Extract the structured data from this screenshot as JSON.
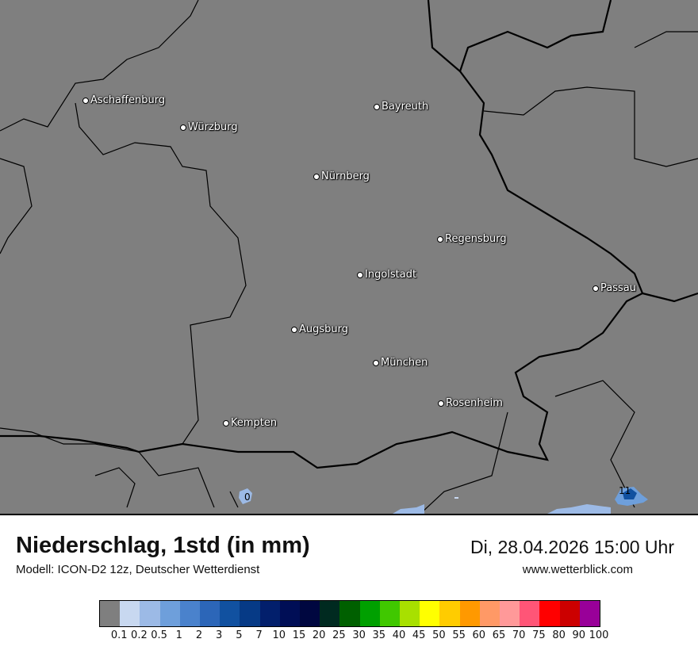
{
  "map": {
    "cities": [
      {
        "name": "Aschaffenburg"
      },
      {
        "name": "Würzburg"
      },
      {
        "name": "Bayreuth"
      },
      {
        "name": "Nürnberg"
      },
      {
        "name": "Regensburg"
      },
      {
        "name": "Ingolstadt"
      },
      {
        "name": "Passau"
      },
      {
        "name": "Augsburg"
      },
      {
        "name": "München"
      },
      {
        "name": "Rosenheim"
      },
      {
        "name": "Kempten"
      }
    ],
    "value_labels": [
      "0",
      "11"
    ],
    "background_color": "#7f7f7f"
  },
  "header": {
    "title": "Niederschlag, 1std (in mm)",
    "model": "Modell: ICON-D2 12z, Deutscher Wetterdienst",
    "datetime": "Di, 28.04.2026 15:00 Uhr",
    "website": "www.wetterblick.com"
  },
  "legend": {
    "ticks": [
      "0.1",
      "0.2",
      "0.5",
      "1",
      "2",
      "3",
      "5",
      "7",
      "10",
      "15",
      "20",
      "25",
      "30",
      "35",
      "40",
      "45",
      "50",
      "55",
      "60",
      "65",
      "70",
      "75",
      "80",
      "90",
      "100"
    ],
    "colors": [
      "#7f7f7f",
      "#c8d8f0",
      "#9cbae6",
      "#6e9fdb",
      "#4a82cc",
      "#2c66b8",
      "#1151a0",
      "#063a86",
      "#021f6c",
      "#000e56",
      "#000740",
      "#002a20",
      "#006000",
      "#00a000",
      "#40c800",
      "#a8e000",
      "#ffff00",
      "#ffcc00",
      "#ff9900",
      "#ff9966",
      "#ff9999",
      "#ff5577",
      "#ff0000",
      "#cc0000",
      "#990099"
    ]
  }
}
